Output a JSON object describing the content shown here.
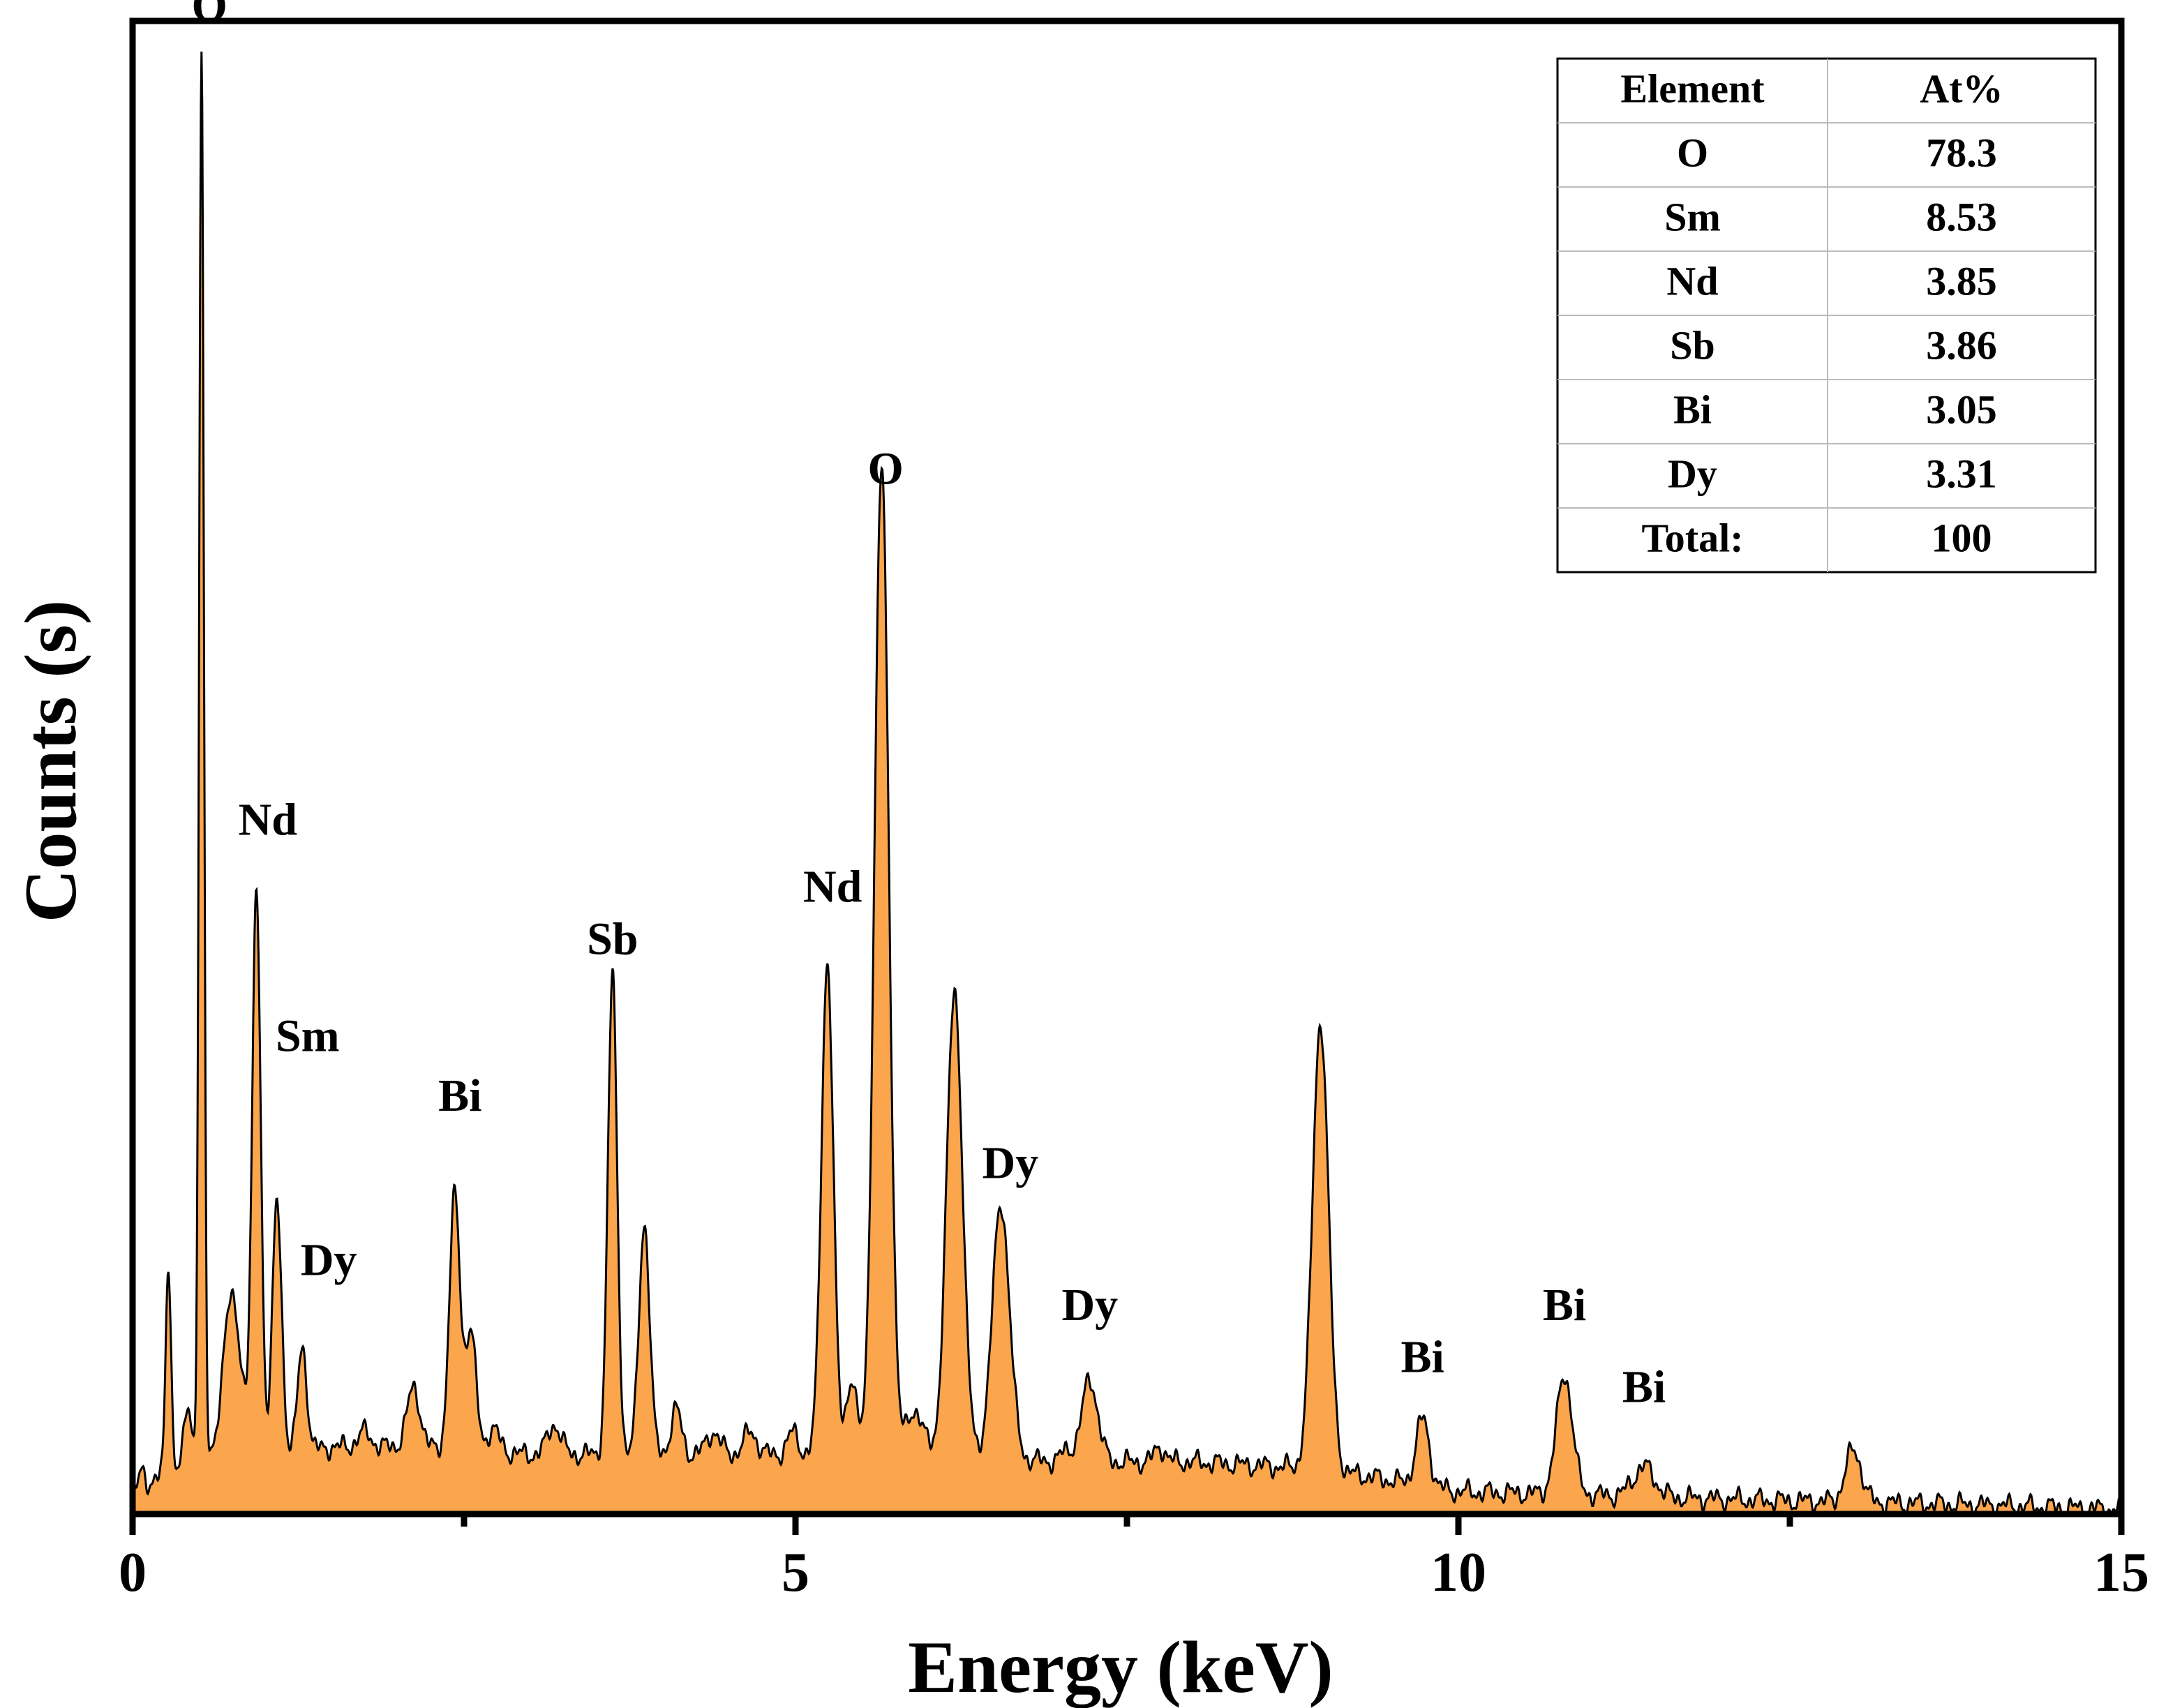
{
  "chart_data": {
    "type": "line",
    "style": "filled-area",
    "xlabel": "Energy (keV)",
    "ylabel": "Counts (s)",
    "xlim": [
      0,
      15
    ],
    "ylim": [
      0,
      1.0
    ],
    "x_ticks": [
      0,
      5,
      10,
      15
    ],
    "x_minor_ticks": [
      2.5,
      7.5,
      12.5
    ],
    "y_tick_labels": false,
    "fill_color": "#FBA54C",
    "line_color": "#000000",
    "baseline": [
      [
        0.0,
        0.015
      ],
      [
        0.3,
        0.03
      ],
      [
        0.8,
        0.035
      ],
      [
        1.5,
        0.045
      ],
      [
        2.0,
        0.045
      ],
      [
        3.0,
        0.04
      ],
      [
        4.0,
        0.04
      ],
      [
        5.0,
        0.04
      ],
      [
        6.0,
        0.04
      ],
      [
        7.0,
        0.035
      ],
      [
        8.0,
        0.035
      ],
      [
        9.0,
        0.03
      ],
      [
        10.0,
        0.015
      ],
      [
        11.0,
        0.013
      ],
      [
        12.0,
        0.01
      ],
      [
        13.0,
        0.008
      ],
      [
        14.0,
        0.006
      ],
      [
        15.0,
        0.003
      ]
    ],
    "peaks": [
      {
        "x": 0.07,
        "h": 0.01,
        "w": 0.02
      },
      {
        "x": 0.27,
        "h": 0.14,
        "w": 0.02
      },
      {
        "x": 0.42,
        "h": 0.04,
        "w": 0.03
      },
      {
        "x": 0.52,
        "h": 0.945,
        "w": 0.018
      },
      {
        "x": 0.75,
        "h": 0.11,
        "w": 0.07
      },
      {
        "x": 0.935,
        "h": 0.38,
        "w": 0.032
      },
      {
        "x": 1.09,
        "h": 0.17,
        "w": 0.035
      },
      {
        "x": 1.28,
        "h": 0.07,
        "w": 0.035
      },
      {
        "x": 1.75,
        "h": 0.01,
        "w": 0.05
      },
      {
        "x": 2.12,
        "h": 0.04,
        "w": 0.05
      },
      {
        "x": 2.43,
        "h": 0.17,
        "w": 0.04
      },
      {
        "x": 2.55,
        "h": 0.08,
        "w": 0.04
      },
      {
        "x": 2.72,
        "h": 0.015,
        "w": 0.05
      },
      {
        "x": 3.18,
        "h": 0.02,
        "w": 0.05
      },
      {
        "x": 3.62,
        "h": 0.32,
        "w": 0.035
      },
      {
        "x": 3.86,
        "h": 0.155,
        "w": 0.04
      },
      {
        "x": 4.1,
        "h": 0.03,
        "w": 0.04
      },
      {
        "x": 4.38,
        "h": 0.015,
        "w": 0.05
      },
      {
        "x": 4.66,
        "h": 0.015,
        "w": 0.05
      },
      {
        "x": 4.98,
        "h": 0.015,
        "w": 0.04
      },
      {
        "x": 5.24,
        "h": 0.33,
        "w": 0.045
      },
      {
        "x": 5.42,
        "h": 0.05,
        "w": 0.04
      },
      {
        "x": 5.65,
        "h": 0.66,
        "w": 0.055
      },
      {
        "x": 5.9,
        "h": 0.03,
        "w": 0.06
      },
      {
        "x": 6.2,
        "h": 0.31,
        "w": 0.06
      },
      {
        "x": 6.55,
        "h": 0.17,
        "w": 0.065
      },
      {
        "x": 7.05,
        "h": 0.007,
        "w": 0.05
      },
      {
        "x": 7.22,
        "h": 0.055,
        "w": 0.06
      },
      {
        "x": 7.75,
        "h": 0.01,
        "w": 0.04
      },
      {
        "x": 8.96,
        "h": 0.3,
        "w": 0.06
      },
      {
        "x": 9.73,
        "h": 0.045,
        "w": 0.05
      },
      {
        "x": 10.8,
        "h": 0.08,
        "w": 0.06
      },
      {
        "x": 11.4,
        "h": 0.02,
        "w": 0.08
      },
      {
        "x": 12.98,
        "h": 0.035,
        "w": 0.06
      }
    ],
    "peak_labels": [
      {
        "text": "O",
        "x": 0.58,
        "y": 1.0
      },
      {
        "text": "Nd",
        "x": 1.02,
        "y": 0.455
      },
      {
        "text": "Sm",
        "x": 1.32,
        "y": 0.31
      },
      {
        "text": "Dy",
        "x": 1.48,
        "y": 0.16
      },
      {
        "text": "Bi",
        "x": 2.47,
        "y": 0.27
      },
      {
        "text": "Sb",
        "x": 3.62,
        "y": 0.375
      },
      {
        "text": "Nd",
        "x": 5.28,
        "y": 0.41
      },
      {
        "text": "O",
        "x": 5.68,
        "y": 0.69
      },
      {
        "text": "Dy",
        "x": 6.62,
        "y": 0.225
      },
      {
        "text": "Dy",
        "x": 7.22,
        "y": 0.13
      },
      {
        "text": "Bi",
        "x": 9.73,
        "y": 0.095
      },
      {
        "text": "Bi",
        "x": 10.8,
        "y": 0.13
      },
      {
        "text": "Bi",
        "x": 11.4,
        "y": 0.075
      }
    ],
    "composition_table": {
      "headers": [
        "Element",
        "At%"
      ],
      "rows": [
        [
          "O",
          "78.3"
        ],
        [
          "Sm",
          "8.53"
        ],
        [
          "Nd",
          "3.85"
        ],
        [
          "Sb",
          "3.86"
        ],
        [
          "Bi",
          "3.05"
        ],
        [
          "Dy",
          "3.31"
        ],
        [
          "Total:",
          "100"
        ]
      ]
    }
  }
}
